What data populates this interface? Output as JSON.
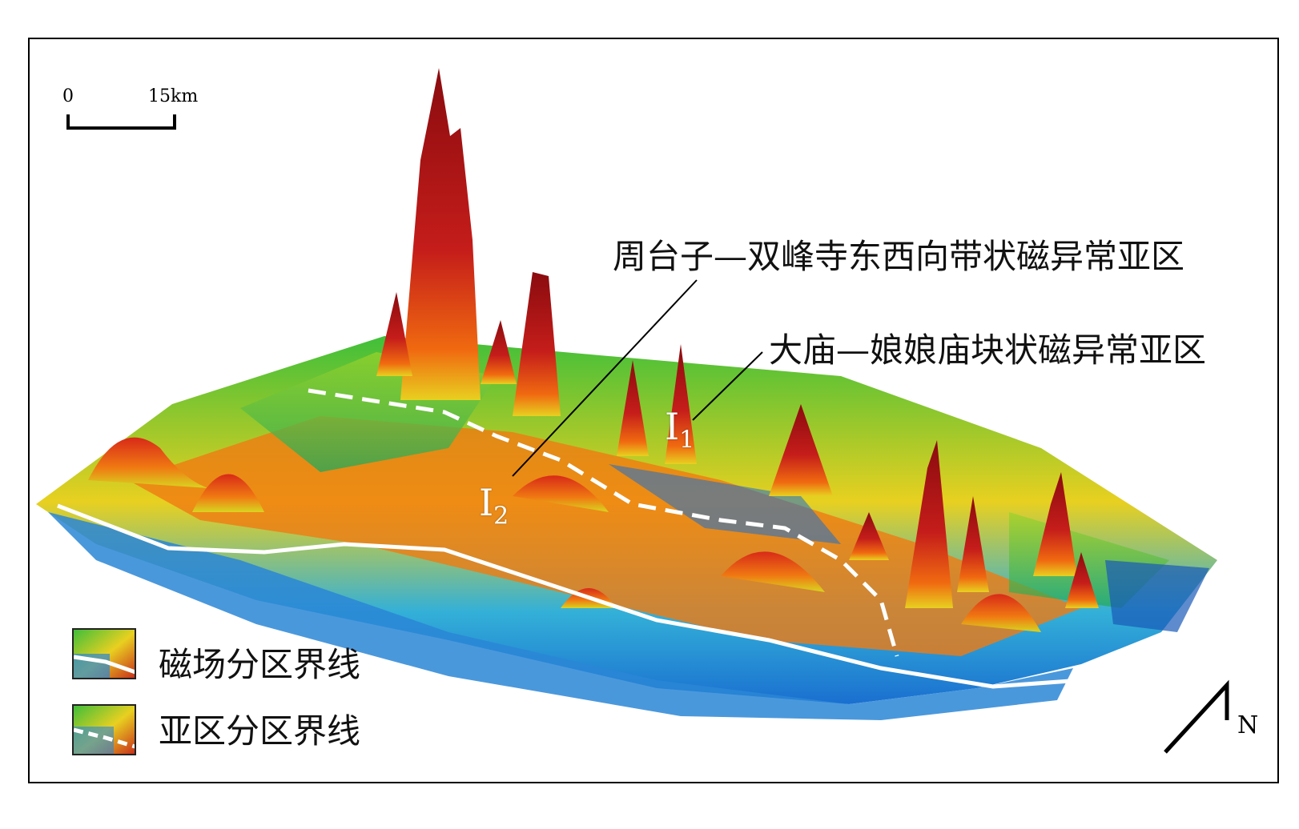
{
  "map": {
    "scale_bar": {
      "start": "0",
      "end": "15km"
    },
    "annotations": {
      "subregion_1": "周台子—双峰寺东西向带状磁异常亚区",
      "subregion_2": "大庙—娘娘庙块状磁异常亚区"
    },
    "zone_labels": {
      "i1_letter": "I",
      "i1_sub": "1",
      "i2_letter": "I",
      "i2_sub": "2"
    },
    "legend": {
      "items": [
        {
          "label": "磁场分区界线",
          "line_style": "solid"
        },
        {
          "label": "亚区分区界线",
          "line_style": "dashed"
        }
      ]
    },
    "north_arrow": {
      "label": "N"
    },
    "colors": {
      "high_anomaly": "#9e0f12",
      "mid_anomaly": "#f06a10",
      "moderate": "#e8d020",
      "low": "#3fbf3a",
      "lowest": "#1a6fd0",
      "boundary_line": "#ffffff"
    }
  }
}
